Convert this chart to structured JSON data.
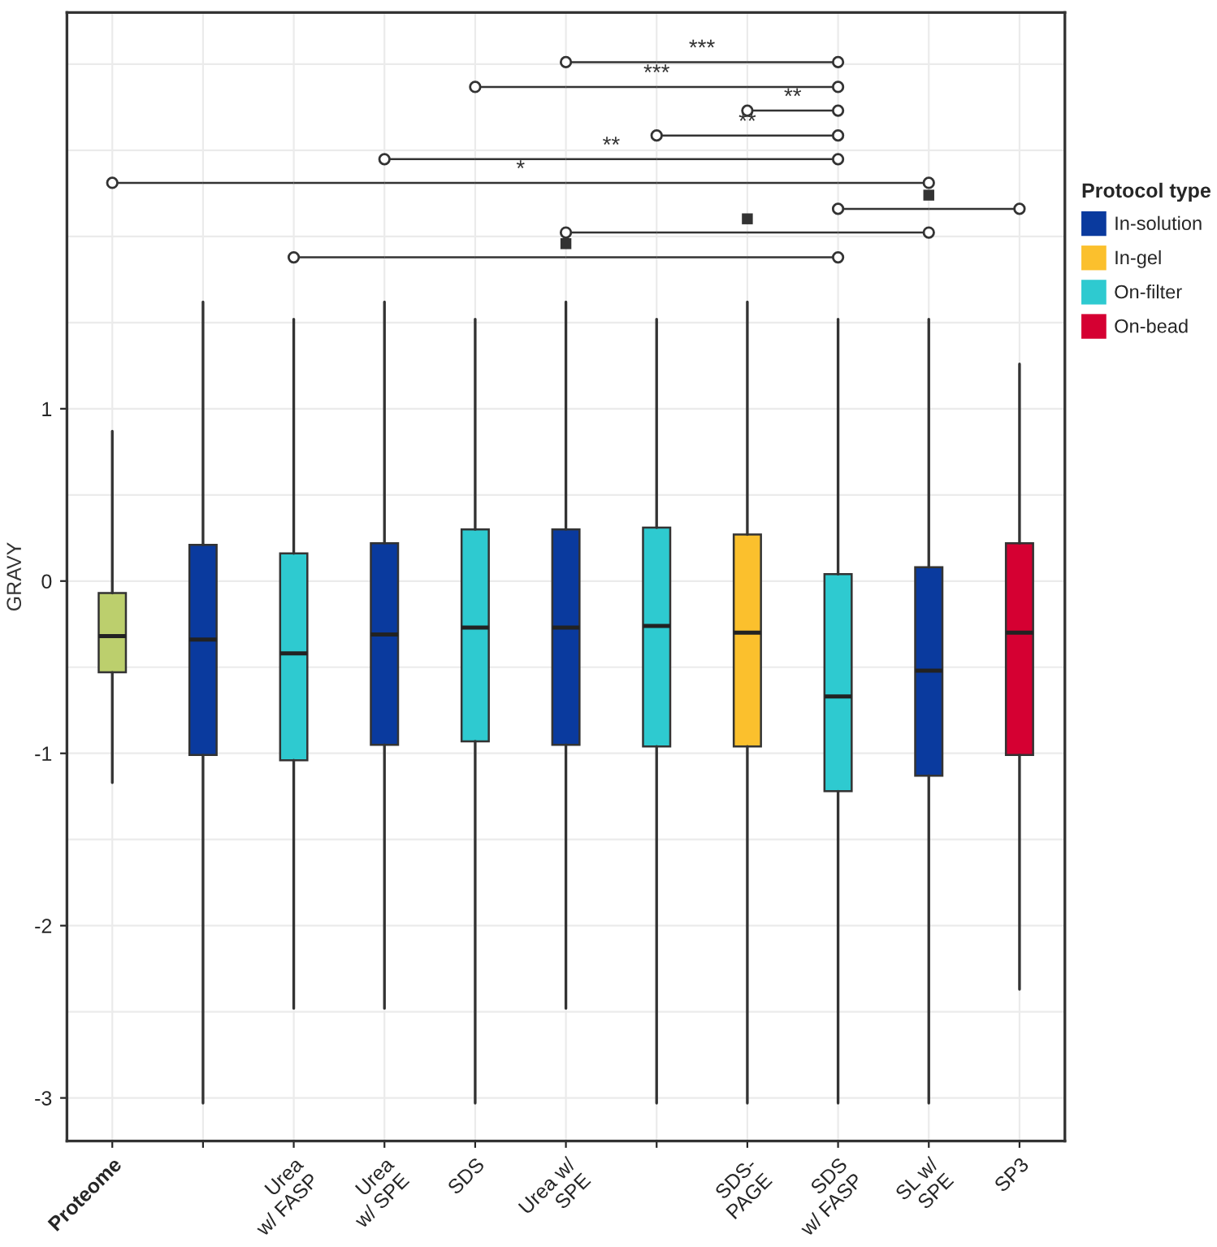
{
  "chart_data": {
    "type": "box",
    "ylabel": "GRAVY",
    "legend_title": "Protocol type",
    "legend": "right",
    "grid": true,
    "categories": [
      "Proteome",
      null,
      "Urea\nw/ FASP",
      "Urea\nw/ SPE",
      "SDS",
      "Urea w/\nSPE",
      null,
      "SDS-\nPAGE",
      "SDS\nw/ FASP",
      "SL w/\nSPE",
      "SP3"
    ],
    "ylim": [
      -3.25,
      3.3
    ],
    "yticks": [
      -3,
      -2,
      -1,
      0,
      1
    ],
    "series": [
      {
        "color": "#bccf6d",
        "boxes": [
          {
            "low": -1.17,
            "q1": -0.53,
            "median": -0.32,
            "q3": -0.07,
            "high": 0.87
          },
          null,
          null,
          null,
          null,
          null,
          null,
          null,
          null,
          null,
          null
        ]
      },
      {
        "name": "In-solution",
        "color": "#0a3a9e",
        "boxes": [
          null,
          {
            "low": -3.03,
            "q1": -1.01,
            "median": -0.34,
            "q3": 0.21,
            "high": 1.62
          },
          null,
          {
            "low": -2.48,
            "q1": -0.95,
            "median": -0.31,
            "q3": 0.22,
            "high": 1.62
          },
          null,
          {
            "low": -2.48,
            "q1": -0.95,
            "median": -0.27,
            "q3": 0.3,
            "high": 1.62
          },
          null,
          null,
          null,
          {
            "low": -3.03,
            "q1": -1.13,
            "median": -0.52,
            "q3": 0.08,
            "high": 1.52
          },
          null
        ]
      },
      {
        "name": "In-gel",
        "color": "#fbc02d",
        "boxes": [
          null,
          null,
          null,
          null,
          null,
          null,
          null,
          {
            "low": -3.03,
            "q1": -0.96,
            "median": -0.3,
            "q3": 0.27,
            "high": 1.62
          },
          null,
          null,
          null
        ]
      },
      {
        "name": "On-filter",
        "color": "#2ecad0",
        "boxes": [
          null,
          null,
          {
            "low": -2.48,
            "q1": -1.04,
            "median": -0.42,
            "q3": 0.16,
            "high": 1.52
          },
          null,
          {
            "low": -3.03,
            "q1": -0.93,
            "median": -0.27,
            "q3": 0.3,
            "high": 1.52
          },
          null,
          {
            "low": -3.03,
            "q1": -0.96,
            "median": -0.26,
            "q3": 0.31,
            "high": 1.52
          },
          null,
          {
            "low": -3.03,
            "q1": -1.22,
            "median": -0.67,
            "q3": 0.04,
            "high": 1.52
          },
          null,
          null
        ]
      },
      {
        "name": "On-bead",
        "color": "#d50032",
        "boxes": [
          null,
          null,
          null,
          null,
          null,
          null,
          null,
          null,
          null,
          null,
          {
            "low": -2.37,
            "q1": -1.01,
            "median": -0.3,
            "q3": 0.22,
            "high": 1.26
          }
        ]
      }
    ],
    "annotations": [
      "***",
      "***",
      "**",
      "**",
      "**",
      "*",
      "■",
      "■",
      "■"
    ]
  }
}
